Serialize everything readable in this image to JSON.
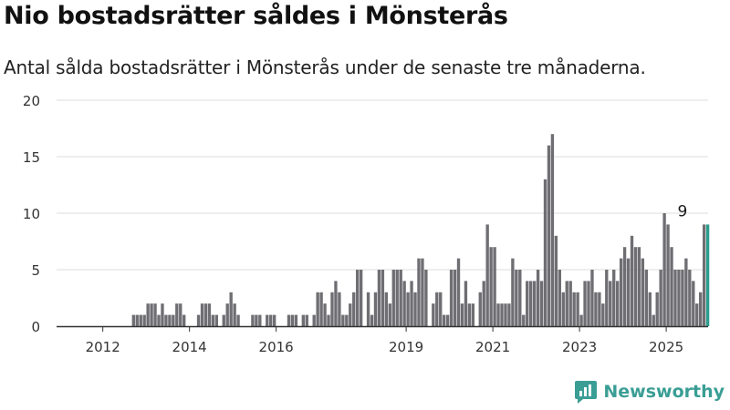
{
  "header": {
    "title": "Nio bostadsrätter såldes i Mönsterås",
    "subtitle": "Antal sålda bostadsrätter i Mönsterås under de senaste tre månaderna."
  },
  "footer": {
    "brand": "Newsworthy"
  },
  "colors": {
    "bar": "#6f6e73",
    "highlight": "#2a9d8f",
    "grid": "#dcdcdc",
    "axis": "#333333",
    "brand": "#3a9e95"
  },
  "chart_data": {
    "type": "bar",
    "title": "Nio bostadsrätter såldes i Mönsterås",
    "xlabel": "",
    "ylabel": "",
    "ylim": [
      0,
      20
    ],
    "yticks": [
      0,
      5,
      10,
      15,
      20
    ],
    "xticks": [
      {
        "label": "2012",
        "date": "2012-01"
      },
      {
        "label": "2014",
        "date": "2014-01"
      },
      {
        "label": "2016",
        "date": "2016-01"
      },
      {
        "label": "2019",
        "date": "2019-01"
      },
      {
        "label": "2021",
        "date": "2021-01"
      },
      {
        "label": "2023",
        "date": "2023-01"
      },
      {
        "label": "2025",
        "date": "2025-01"
      }
    ],
    "start": "2012-03",
    "values": [
      0,
      0,
      0,
      0,
      0,
      0,
      1,
      1,
      1,
      1,
      2,
      2,
      2,
      1,
      2,
      1,
      1,
      1,
      2,
      2,
      1,
      0,
      0,
      0,
      1,
      2,
      2,
      2,
      1,
      1,
      0,
      1,
      2,
      3,
      2,
      1,
      0,
      0,
      0,
      1,
      1,
      1,
      0,
      1,
      1,
      1,
      0,
      0,
      0,
      1,
      1,
      1,
      0,
      1,
      1,
      0,
      1,
      3,
      3,
      2,
      1,
      3,
      4,
      3,
      1,
      1,
      2,
      3,
      5,
      5,
      0,
      3,
      1,
      3,
      5,
      5,
      3,
      2,
      5,
      5,
      5,
      4,
      3,
      4,
      3,
      6,
      6,
      5,
      0,
      2,
      3,
      3,
      1,
      1,
      5,
      5,
      6,
      2,
      4,
      2,
      2,
      0,
      3,
      4,
      9,
      7,
      7,
      2,
      2,
      2,
      2,
      6,
      5,
      5,
      1,
      4,
      4,
      4,
      5,
      4,
      13,
      16,
      17,
      8,
      5,
      3,
      4,
      4,
      3,
      3,
      1,
      4,
      4,
      5,
      3,
      3,
      2,
      5,
      4,
      5,
      4,
      6,
      7,
      6,
      8,
      7,
      7,
      6,
      5,
      3,
      1,
      3,
      5,
      10,
      9,
      7,
      5,
      5,
      5,
      6,
      5,
      4,
      2,
      3,
      9,
      9
    ],
    "highlight_last": 1,
    "data_labels": [
      {
        "date": "2025-05",
        "value": 9,
        "text": "9"
      }
    ]
  }
}
